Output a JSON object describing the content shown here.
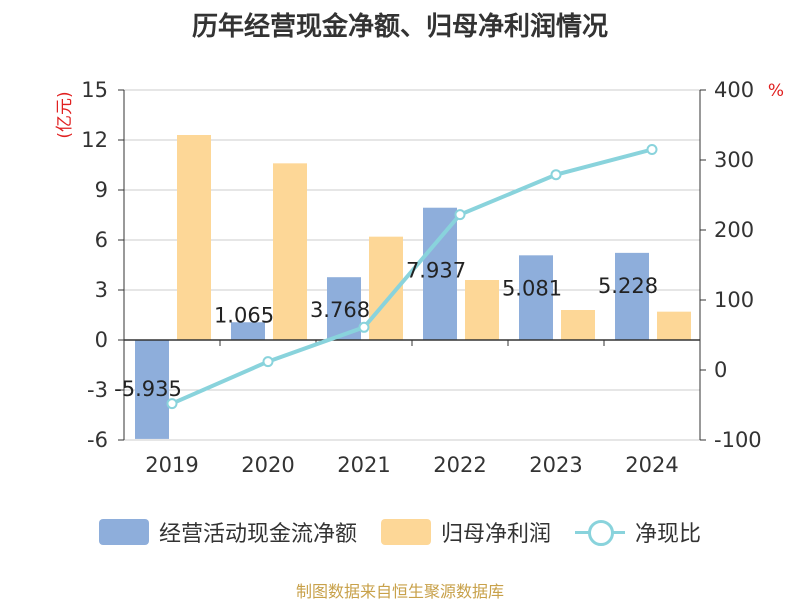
{
  "chart_data": {
    "type": "bar",
    "title": "历年经营现金净额、归母净利润情况",
    "categories": [
      "2019",
      "2020",
      "2021",
      "2022",
      "2023",
      "2024"
    ],
    "series": [
      {
        "name": "经营活动现金流净额",
        "type": "bar",
        "axis": "left",
        "color": "#8eaedb",
        "values": [
          -5.935,
          1.065,
          3.768,
          7.937,
          5.081,
          5.228
        ],
        "labels": [
          "-5.935",
          "1.065",
          "3.768",
          "7.937",
          "5.081",
          "5.228"
        ]
      },
      {
        "name": "归母净利润",
        "type": "bar",
        "axis": "left",
        "color": "#fdd797",
        "values": [
          12.3,
          10.6,
          6.2,
          3.6,
          1.8,
          1.7
        ]
      },
      {
        "name": "净现比",
        "type": "line",
        "axis": "right",
        "color": "#89d3dc",
        "values": [
          -48,
          12,
          61,
          222,
          279,
          315
        ]
      }
    ],
    "y_left": {
      "label": "(亿元)",
      "ylim": [
        -6,
        15
      ],
      "ticks": [
        15,
        12,
        9,
        6,
        3,
        0,
        -3,
        -6
      ],
      "tick_labels": [
        "15",
        "12",
        "9",
        "6",
        "3",
        "0",
        "-3",
        "-6"
      ]
    },
    "y_right": {
      "label": "%",
      "ylim": [
        -100,
        400
      ],
      "ticks": [
        400,
        300,
        200,
        100,
        0,
        -100
      ],
      "tick_labels": [
        "400",
        "300",
        "200",
        "100",
        "0",
        "-100"
      ]
    },
    "legend": [
      {
        "label": "经营活动现金流净额",
        "color": "#8eaedb"
      },
      {
        "label": "归母净利润",
        "color": "#fdd797"
      },
      {
        "label": "净现比",
        "color": "#89d3dc"
      }
    ],
    "legend_position": "bottom",
    "grid": true
  },
  "source": "制图数据来自恒生聚源数据库",
  "colors": {
    "axis_label": "#e02020",
    "text": "#333333",
    "source": "#c8a14a"
  }
}
